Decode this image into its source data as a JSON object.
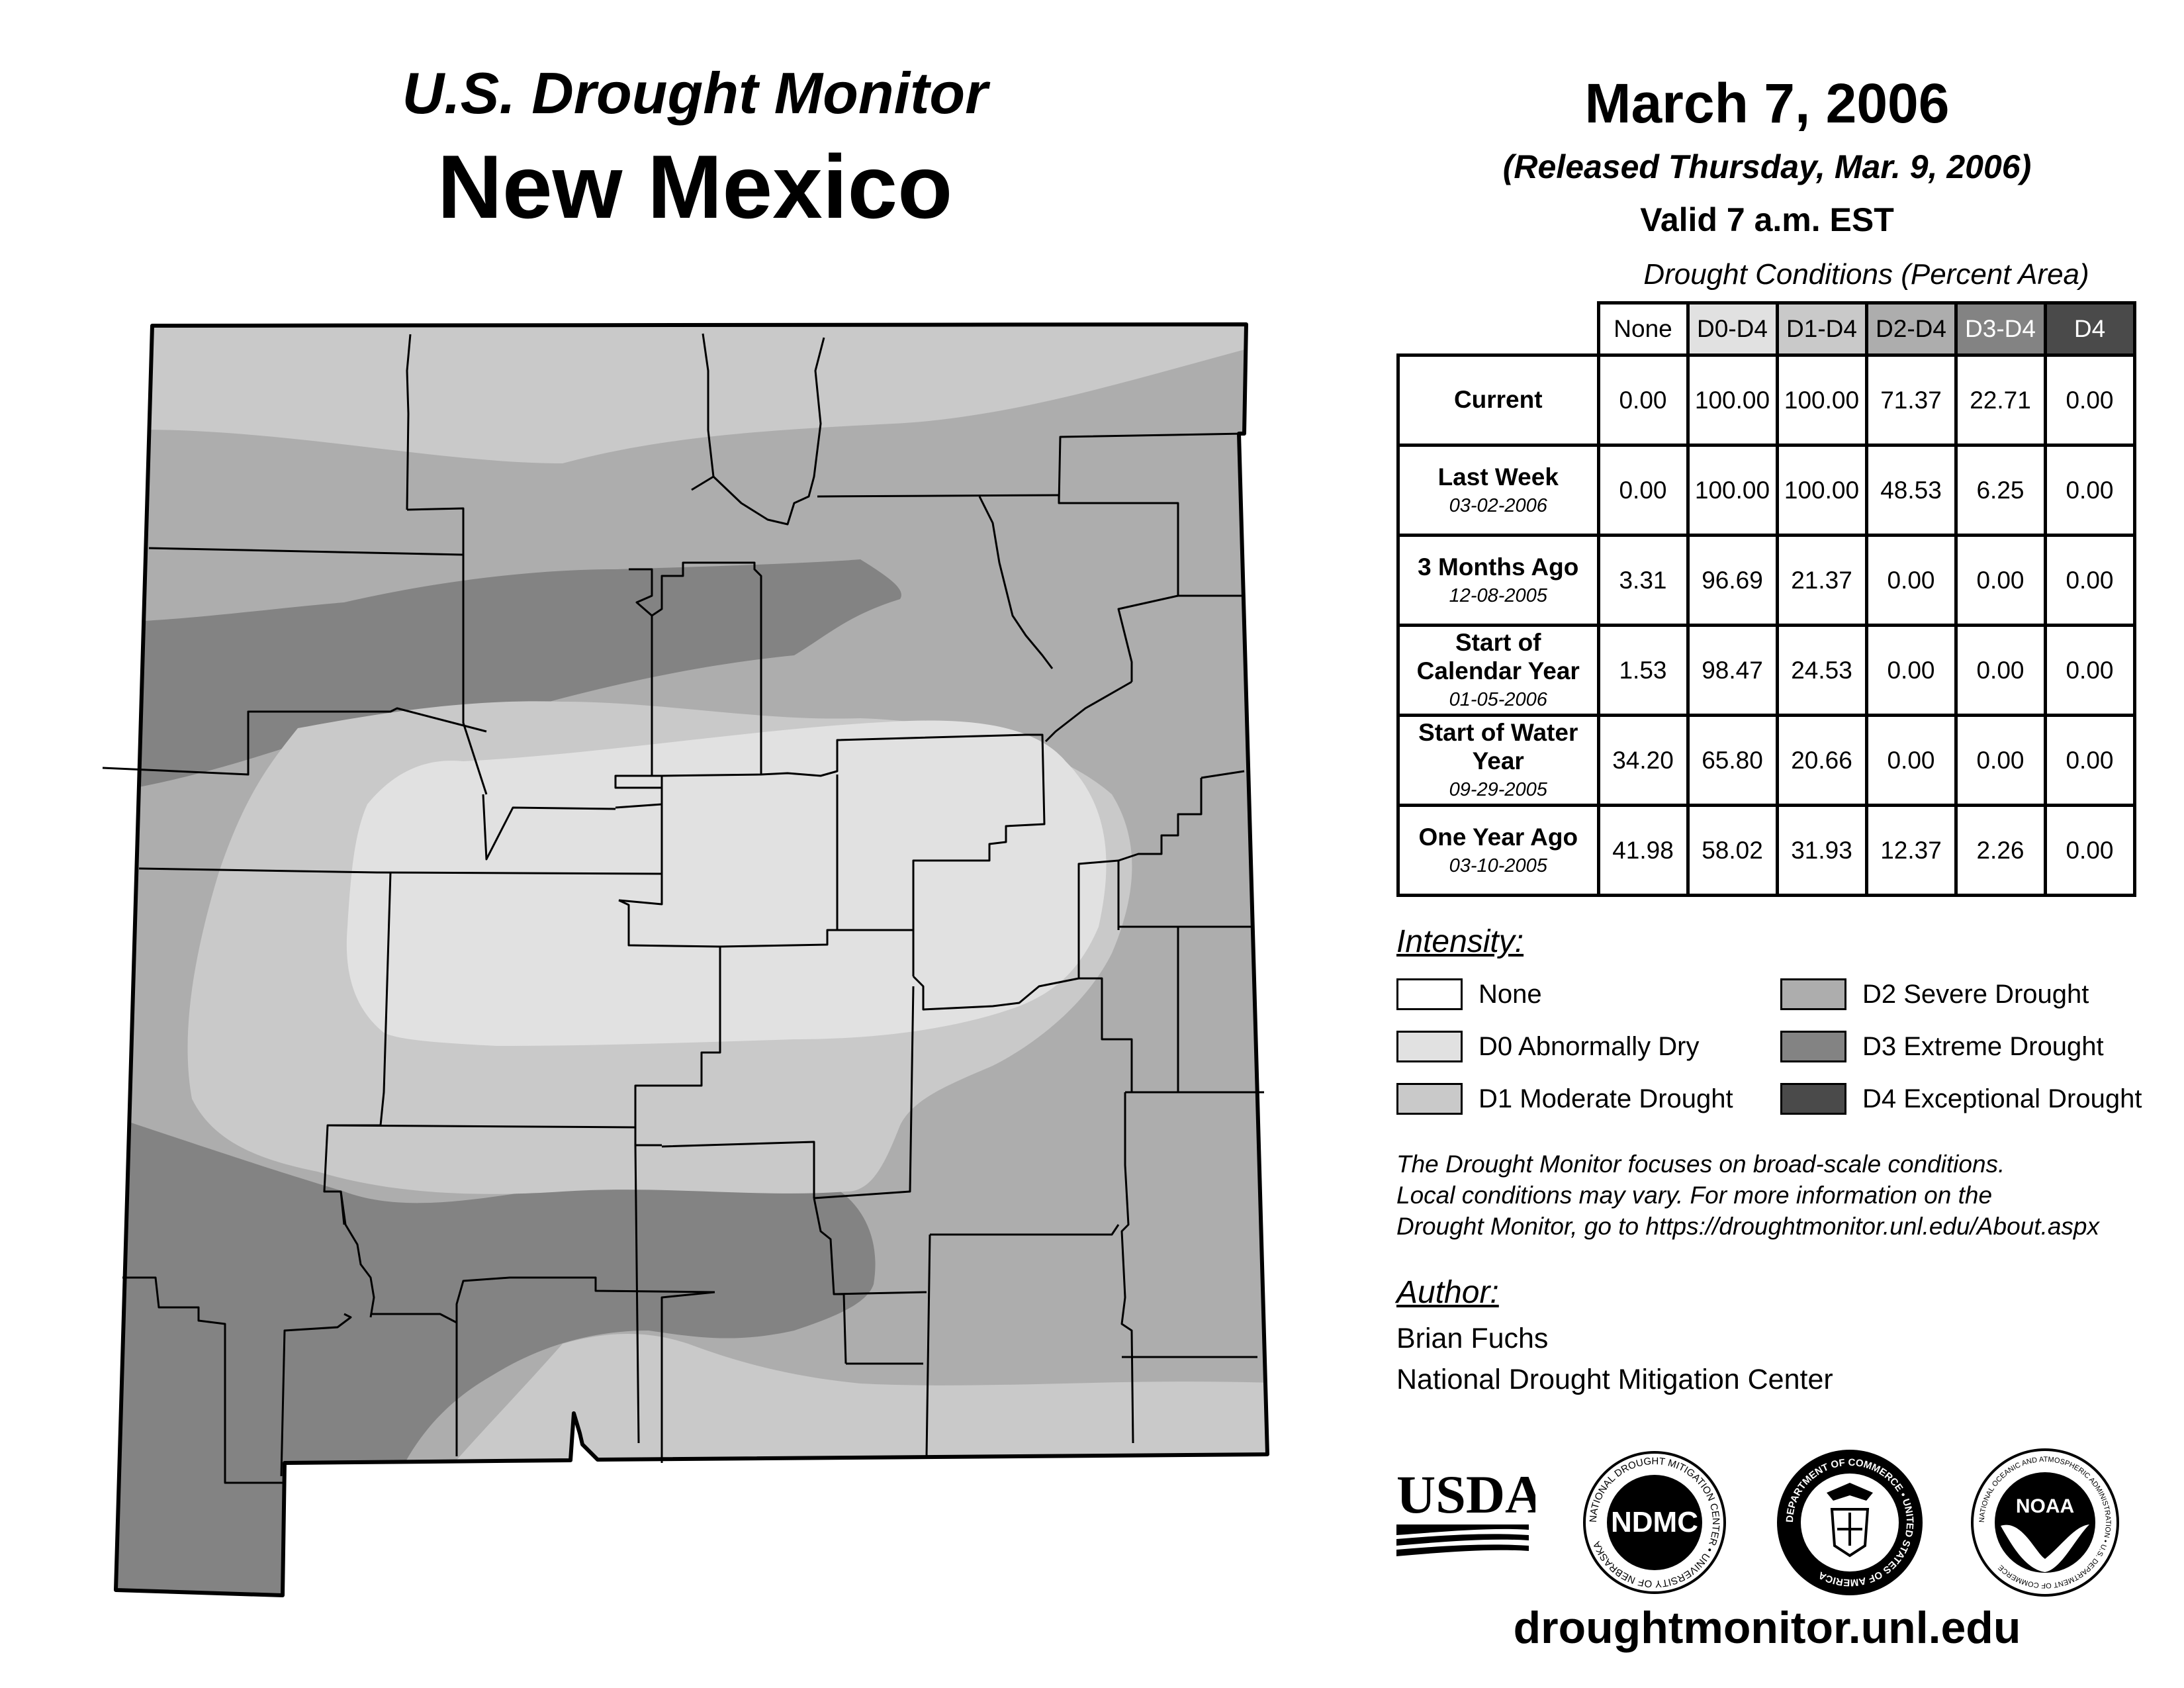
{
  "header": {
    "supertitle": "U.S. Drought Monitor",
    "state": "New Mexico",
    "map_date": "March 7, 2006",
    "released": "(Released Thursday, Mar. 9, 2006)",
    "valid": "Valid 7 a.m. EST"
  },
  "table": {
    "caption": "Drought Conditions (Percent Area)",
    "columns": [
      "None",
      "D0-D4",
      "D1-D4",
      "D2-D4",
      "D3-D4",
      "D4"
    ],
    "rows": [
      {
        "label": "Current",
        "date": "",
        "values": [
          "0.00",
          "100.00",
          "100.00",
          "71.37",
          "22.71",
          "0.00"
        ]
      },
      {
        "label": "Last Week",
        "date": "03-02-2006",
        "values": [
          "0.00",
          "100.00",
          "100.00",
          "48.53",
          "6.25",
          "0.00"
        ]
      },
      {
        "label": "3 Months Ago",
        "date": "12-08-2005",
        "values": [
          "3.31",
          "96.69",
          "21.37",
          "0.00",
          "0.00",
          "0.00"
        ]
      },
      {
        "label": "Start of Calendar Year",
        "date": "01-05-2006",
        "values": [
          "1.53",
          "98.47",
          "24.53",
          "0.00",
          "0.00",
          "0.00"
        ]
      },
      {
        "label": "Start of Water Year",
        "date": "09-29-2005",
        "values": [
          "34.20",
          "65.80",
          "20.66",
          "0.00",
          "0.00",
          "0.00"
        ]
      },
      {
        "label": "One Year Ago",
        "date": "03-10-2005",
        "values": [
          "41.98",
          "58.02",
          "31.93",
          "12.37",
          "2.26",
          "0.00"
        ]
      }
    ]
  },
  "legend": {
    "title": "Intensity:",
    "items": [
      {
        "label": "None",
        "color": "#ffffff"
      },
      {
        "label": "D0 Abnormally Dry",
        "color": "#e1e1e1"
      },
      {
        "label": "D1 Moderate Drought",
        "color": "#c9c9c9"
      },
      {
        "label": "D2 Severe Drought",
        "color": "#adadad"
      },
      {
        "label": "D3 Extreme Drought",
        "color": "#838383"
      },
      {
        "label": "D4 Exceptional Drought",
        "color": "#4a4a4a"
      }
    ]
  },
  "note": {
    "line1": "The Drought Monitor focuses on broad-scale conditions.",
    "line2": "Local conditions may vary. For more information on the",
    "line3": "Drought Monitor, go to https://droughtmonitor.unl.edu/About.aspx"
  },
  "author": {
    "title": "Author:",
    "name": "Brian Fuchs",
    "org": "National Drought Mitigation Center"
  },
  "logos": {
    "usda": "USDA",
    "ndmc": "NDMC",
    "ndmc_ring": "NATIONAL DROUGHT MITIGATION CENTER • UNIVERSITY OF NEBRASKA",
    "doc_ring": "DEPARTMENT OF COMMERCE • UNITED STATES OF AMERICA",
    "noaa": "NOAA",
    "noaa_ring": "NATIONAL OCEANIC AND ATMOSPHERIC ADMINISTRATION • U.S. DEPARTMENT OF COMMERCE"
  },
  "website": "droughtmonitor.unl.edu",
  "map_colors": {
    "d0": "#e1e1e1",
    "d1": "#c9c9c9",
    "d2": "#adadad",
    "d3": "#838383",
    "d4": "#4a4a4a",
    "county_lines": "#000000"
  }
}
